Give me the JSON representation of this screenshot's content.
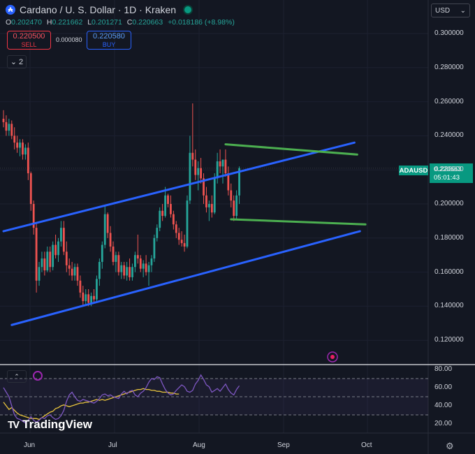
{
  "header": {
    "symbol_title": "Cardano / U. S. Dollar · 1D · Kraken",
    "coin_icon": "cardano-icon",
    "ohlc": [
      {
        "key": "O",
        "value": "0.202470"
      },
      {
        "key": "H",
        "value": "0.221662"
      },
      {
        "key": "L",
        "value": "0.201271"
      },
      {
        "key": "C",
        "value": "0.220663"
      }
    ],
    "change": "+0.018186 (+8.98%)",
    "sell_price": "0.220500",
    "sell_label": "SELL",
    "spread": "0.000080",
    "buy_price": "0.220580",
    "buy_label": "BUY",
    "collapse_count": "2",
    "currency": "USD"
  },
  "colors": {
    "background": "#131722",
    "up": "#26a69a",
    "down": "#ef5350",
    "channel": "#2962ff",
    "range_lines": "#4caf50",
    "rsi": "#7e57c2",
    "rsi_ma": "#e8c33d"
  },
  "price_tag": {
    "symbol": "ADAUSD",
    "price": "0.220663",
    "countdown": "05:01:43"
  },
  "chart_data": [
    {
      "type": "candlestick",
      "title": "Cardano / U. S. Dollar · 1D · Kraken",
      "y_tick_labels": [
        "0.300000",
        "0.280000",
        "0.260000",
        "0.240000",
        "0.220000",
        "0.200000",
        "0.180000",
        "0.160000",
        "0.140000",
        "0.120000"
      ],
      "x_tick_labels": [
        "Jun",
        "Jul",
        "Aug",
        "Sep",
        "Oct"
      ],
      "ylim": [
        0.11,
        0.3
      ],
      "start_date": "2024-05-24",
      "candles": [
        [
          0.25,
          0.255,
          0.245,
          0.248
        ],
        [
          0.248,
          0.252,
          0.24,
          0.243
        ],
        [
          0.243,
          0.25,
          0.24,
          0.247
        ],
        [
          0.247,
          0.249,
          0.238,
          0.24
        ],
        [
          0.24,
          0.245,
          0.232,
          0.236
        ],
        [
          0.236,
          0.24,
          0.23,
          0.233
        ],
        [
          0.233,
          0.238,
          0.228,
          0.236
        ],
        [
          0.236,
          0.238,
          0.226,
          0.229
        ],
        [
          0.229,
          0.235,
          0.226,
          0.233
        ],
        [
          0.233,
          0.236,
          0.214,
          0.218
        ],
        [
          0.218,
          0.219,
          0.196,
          0.2
        ],
        [
          0.2,
          0.202,
          0.182,
          0.186
        ],
        [
          0.186,
          0.189,
          0.148,
          0.155
        ],
        [
          0.155,
          0.166,
          0.152,
          0.163
        ],
        [
          0.163,
          0.172,
          0.16,
          0.168
        ],
        [
          0.168,
          0.172,
          0.158,
          0.161
        ],
        [
          0.161,
          0.175,
          0.16,
          0.172
        ],
        [
          0.172,
          0.175,
          0.16,
          0.163
        ],
        [
          0.163,
          0.178,
          0.161,
          0.176
        ],
        [
          0.176,
          0.182,
          0.168,
          0.17
        ],
        [
          0.17,
          0.18,
          0.166,
          0.178
        ],
        [
          0.178,
          0.19,
          0.175,
          0.186
        ],
        [
          0.186,
          0.19,
          0.17,
          0.172
        ],
        [
          0.172,
          0.178,
          0.16,
          0.164
        ],
        [
          0.164,
          0.168,
          0.158,
          0.162
        ],
        [
          0.162,
          0.166,
          0.155,
          0.158
        ],
        [
          0.158,
          0.165,
          0.155,
          0.163
        ],
        [
          0.163,
          0.165,
          0.152,
          0.155
        ],
        [
          0.155,
          0.158,
          0.145,
          0.148
        ],
        [
          0.148,
          0.152,
          0.14,
          0.143
        ],
        [
          0.143,
          0.15,
          0.141,
          0.147
        ],
        [
          0.147,
          0.15,
          0.14,
          0.142
        ],
        [
          0.142,
          0.148,
          0.14,
          0.146
        ],
        [
          0.146,
          0.15,
          0.142,
          0.144
        ],
        [
          0.144,
          0.158,
          0.143,
          0.156
        ],
        [
          0.156,
          0.168,
          0.152,
          0.166
        ],
        [
          0.166,
          0.178,
          0.162,
          0.176
        ],
        [
          0.176,
          0.199,
          0.174,
          0.194
        ],
        [
          0.194,
          0.195,
          0.18,
          0.183
        ],
        [
          0.183,
          0.187,
          0.172,
          0.175
        ],
        [
          0.175,
          0.178,
          0.164,
          0.166
        ],
        [
          0.166,
          0.172,
          0.16,
          0.17
        ],
        [
          0.17,
          0.172,
          0.158,
          0.16
        ],
        [
          0.16,
          0.166,
          0.156,
          0.164
        ],
        [
          0.164,
          0.166,
          0.156,
          0.158
        ],
        [
          0.158,
          0.166,
          0.155,
          0.163
        ],
        [
          0.163,
          0.168,
          0.155,
          0.157
        ],
        [
          0.157,
          0.165,
          0.155,
          0.163
        ],
        [
          0.163,
          0.172,
          0.16,
          0.17
        ],
        [
          0.17,
          0.182,
          0.165,
          0.168
        ],
        [
          0.168,
          0.17,
          0.16,
          0.162
        ],
        [
          0.162,
          0.167,
          0.157,
          0.165
        ],
        [
          0.165,
          0.17,
          0.158,
          0.16
        ],
        [
          0.16,
          0.166,
          0.152,
          0.164
        ],
        [
          0.164,
          0.17,
          0.16,
          0.168
        ],
        [
          0.168,
          0.182,
          0.166,
          0.18
        ],
        [
          0.18,
          0.188,
          0.178,
          0.186
        ],
        [
          0.186,
          0.198,
          0.184,
          0.196
        ],
        [
          0.196,
          0.2,
          0.19,
          0.193
        ],
        [
          0.193,
          0.21,
          0.192,
          0.205
        ],
        [
          0.205,
          0.206,
          0.198,
          0.2
        ],
        [
          0.2,
          0.205,
          0.192,
          0.194
        ],
        [
          0.194,
          0.196,
          0.185,
          0.188
        ],
        [
          0.188,
          0.19,
          0.18,
          0.183
        ],
        [
          0.183,
          0.186,
          0.176,
          0.179
        ],
        [
          0.179,
          0.184,
          0.175,
          0.177
        ],
        [
          0.177,
          0.182,
          0.172,
          0.175
        ],
        [
          0.175,
          0.205,
          0.174,
          0.202
        ],
        [
          0.202,
          0.24,
          0.2,
          0.23
        ],
        [
          0.23,
          0.259,
          0.222,
          0.226
        ],
        [
          0.226,
          0.232,
          0.214,
          0.217
        ],
        [
          0.217,
          0.225,
          0.208,
          0.221
        ],
        [
          0.221,
          0.227,
          0.212,
          0.215
        ],
        [
          0.215,
          0.218,
          0.2,
          0.205
        ],
        [
          0.205,
          0.21,
          0.195,
          0.198
        ],
        [
          0.198,
          0.202,
          0.19,
          0.2
        ],
        [
          0.2,
          0.205,
          0.192,
          0.195
        ],
        [
          0.195,
          0.218,
          0.194,
          0.215
        ],
        [
          0.215,
          0.23,
          0.212,
          0.225
        ],
        [
          0.225,
          0.232,
          0.218,
          0.222
        ],
        [
          0.222,
          0.226,
          0.212,
          0.226
        ],
        [
          0.226,
          0.232,
          0.216,
          0.218
        ],
        [
          0.218,
          0.222,
          0.205,
          0.208
        ],
        [
          0.208,
          0.212,
          0.198,
          0.202
        ],
        [
          0.202,
          0.205,
          0.19,
          0.193
        ],
        [
          0.193,
          0.208,
          0.191,
          0.205
        ],
        [
          0.205,
          0.222,
          0.2,
          0.221
        ]
      ],
      "channel_upper": [
        [
          "2024-05-24",
          0.184
        ],
        [
          "2024-09-29",
          0.236
        ]
      ],
      "channel_lower": [
        [
          "2024-05-27",
          0.129
        ],
        [
          "2024-10-01",
          0.184
        ]
      ],
      "range_top": [
        [
          "2024-08-13",
          0.235
        ],
        [
          "2024-09-30",
          0.229
        ]
      ],
      "range_bottom": [
        [
          "2024-08-15",
          0.191
        ],
        [
          "2024-10-03",
          0.188
        ]
      ]
    },
    {
      "type": "line",
      "title": "RSI",
      "y_tick_labels": [
        "80.00",
        "60.00",
        "40.00",
        "20.00"
      ],
      "ylim": [
        12,
        82
      ],
      "levels": [
        70,
        50,
        30
      ],
      "series": [
        {
          "values": [
            44,
            40,
            36,
            38,
            35,
            32,
            30,
            29,
            28,
            27,
            26,
            26,
            26,
            25,
            27,
            29,
            31,
            33,
            34,
            37,
            38,
            40,
            41,
            40,
            39,
            40,
            41,
            42,
            43,
            43,
            44,
            44,
            45,
            46,
            47,
            46,
            47,
            46,
            47,
            48,
            49,
            50,
            51,
            52,
            53,
            54,
            55,
            56,
            57,
            58,
            58,
            59,
            58,
            58,
            57,
            57,
            56,
            56,
            55,
            55,
            55,
            54,
            54,
            53,
            53
          ]
        },
        {
          "values": [
            60,
            55,
            50,
            40,
            30,
            26,
            25,
            23,
            21,
            24,
            28,
            24,
            22,
            24,
            27,
            26,
            29,
            30,
            27,
            25,
            26,
            29,
            35,
            45,
            52,
            55,
            50,
            46,
            45,
            47,
            46,
            45,
            44,
            43,
            45,
            48,
            52,
            53,
            51,
            52,
            50,
            49,
            48,
            53,
            56,
            53,
            56,
            57,
            52,
            50,
            54,
            56,
            60,
            66,
            70,
            69,
            72,
            71,
            64,
            58,
            54,
            52,
            53,
            57,
            60,
            63,
            61,
            56,
            55,
            57,
            64,
            68,
            74,
            69,
            63,
            61,
            55,
            57,
            59,
            56,
            60,
            64,
            58,
            54,
            52,
            58,
            62
          ]
        }
      ]
    }
  ],
  "branding": {
    "logo_mark": "TV",
    "logo_text": "TradingView"
  }
}
